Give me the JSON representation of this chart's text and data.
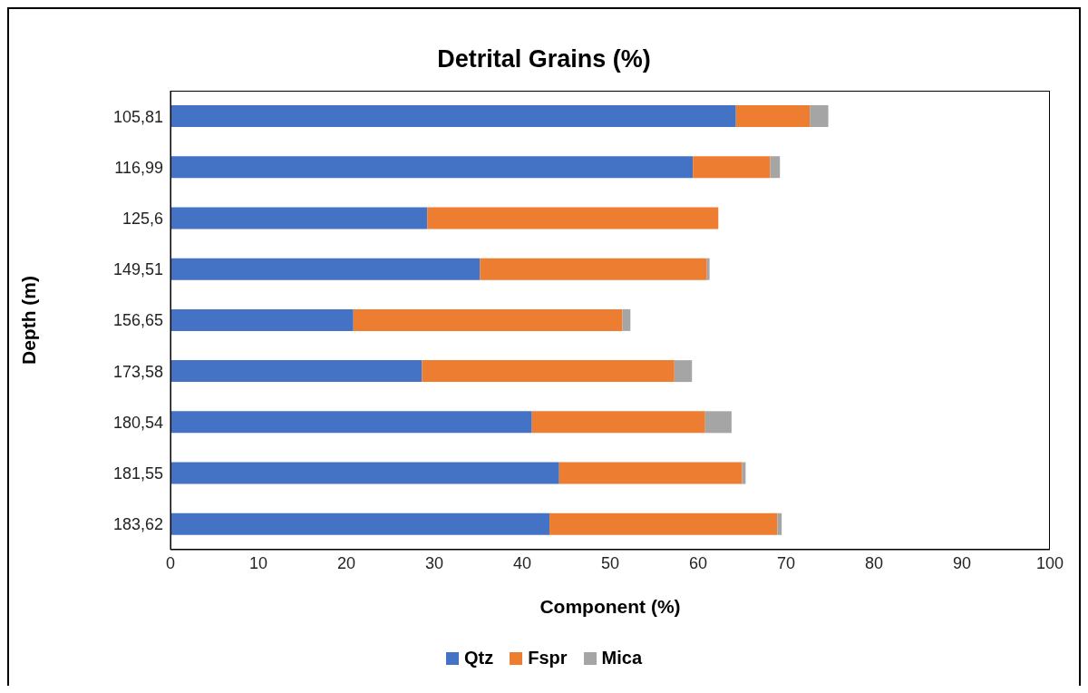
{
  "chart_data": {
    "type": "bar",
    "title": "Detrital Grains (%)",
    "xlabel": "Component (%)",
    "ylabel": "Depth (m)",
    "orientation": "horizontal",
    "stacked": true,
    "categories": [
      "105,81",
      "116,99",
      "125,6",
      "149,51",
      "156,65",
      "173,58",
      "180,54",
      "181,55",
      "183,62"
    ],
    "series": [
      {
        "name": "Qtz",
        "color": "#4472c4",
        "values": [
          64.3,
          59.4,
          29.2,
          35.2,
          20.8,
          28.6,
          41.1,
          44.2,
          43.1
        ]
      },
      {
        "name": "Fspr",
        "color": "#ed7d31",
        "values": [
          8.4,
          8.8,
          33.1,
          25.8,
          30.6,
          28.7,
          19.7,
          20.8,
          25.9
        ]
      },
      {
        "name": "Mica",
        "color": "#a5a5a5",
        "values": [
          2.1,
          1.1,
          0,
          0.3,
          0.9,
          2.0,
          3.0,
          0.4,
          0.5
        ]
      }
    ],
    "xlim": [
      0,
      100
    ],
    "xticks": [
      0,
      10,
      20,
      30,
      40,
      50,
      60,
      70,
      80,
      90,
      100
    ],
    "grid": false,
    "legend": "bottom"
  }
}
